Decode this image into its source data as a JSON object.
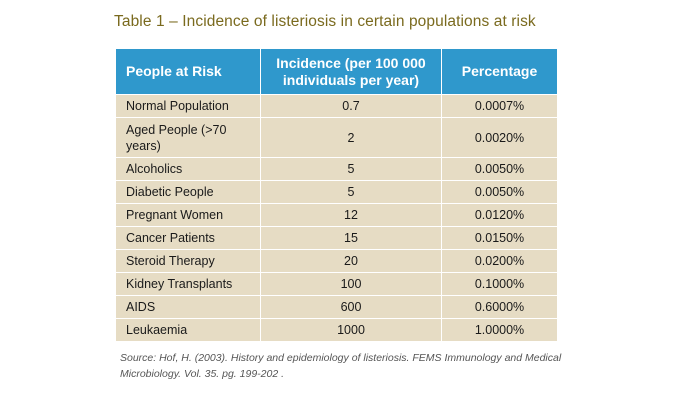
{
  "title": "Table 1 – Incidence of listeriosis in certain populations at risk",
  "headers": {
    "population": "People at Risk",
    "incidence": "Incidence (per 100 000 individuals per year)",
    "percentage": "Percentage"
  },
  "rows": [
    {
      "population": "Normal Population",
      "incidence": "0.7",
      "percentage": "0.0007%"
    },
    {
      "population": "Aged People (>70 years)",
      "incidence": "2",
      "percentage": "0.0020%"
    },
    {
      "population": "Alcoholics",
      "incidence": "5",
      "percentage": "0.0050%"
    },
    {
      "population": "Diabetic People",
      "incidence": "5",
      "percentage": "0.0050%"
    },
    {
      "population": "Pregnant Women",
      "incidence": "12",
      "percentage": "0.0120%"
    },
    {
      "population": "Cancer Patients",
      "incidence": "15",
      "percentage": "0.0150%"
    },
    {
      "population": "Steroid Therapy",
      "incidence": "20",
      "percentage": "0.0200%"
    },
    {
      "population": "Kidney Transplants",
      "incidence": "100",
      "percentage": "0.1000%"
    },
    {
      "population": "AIDS",
      "incidence": "600",
      "percentage": "0.6000%"
    },
    {
      "population": "Leukaemia",
      "incidence": "1000",
      "percentage": "1.0000%"
    }
  ],
  "source": "Source: Hof, H. (2003). History and epidemiology of listeriosis. FEMS Immunology and Medical Microbiology. Vol. 35. pg. 199-202 .",
  "colors": {
    "header_bg": "#2f98cc",
    "row_bg": "#e6dcc4",
    "title_text": "#7a6a1e"
  }
}
